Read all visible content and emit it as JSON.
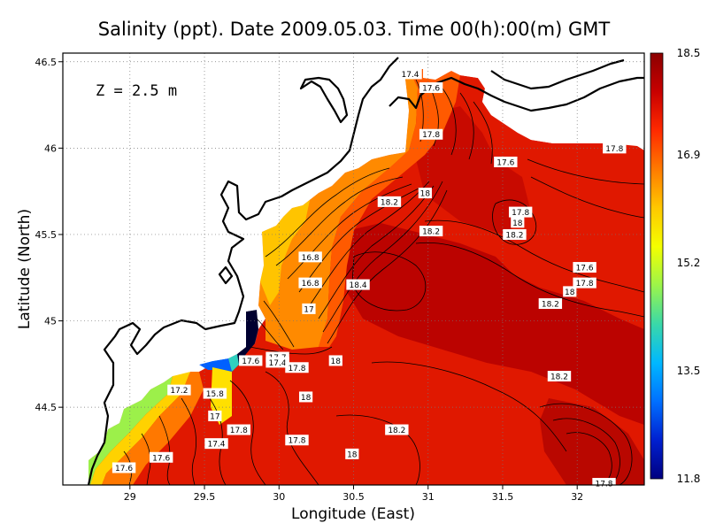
{
  "chart_data": {
    "type": "heatmap",
    "title": "Salinity (ppt). Date 2009.05.03. Time 00(h):00(m) GMT",
    "xlabel": "Longitude (East)",
    "ylabel": "Latitude (North)",
    "depth_label": "Z = 2.5 m",
    "xlim": [
      28.55,
      32.45
    ],
    "ylim": [
      44.05,
      46.55
    ],
    "x_ticks": [
      "29",
      "29.5",
      "30",
      "30.5",
      "31",
      "31.5",
      "32"
    ],
    "y_ticks": [
      "44.5",
      "45",
      "45.5",
      "46",
      "46.5"
    ],
    "grid": true,
    "colorbar": {
      "min": 11.8,
      "max": 18.5,
      "ticks": [
        "18.5",
        "16.9",
        "15.2",
        "13.5",
        "11.8"
      ],
      "colors": [
        "#8b0000",
        "#c80000",
        "#ff2a00",
        "#ff7a00",
        "#ffc800",
        "#f4ff00",
        "#9cf54a",
        "#3ad8a8",
        "#00b8ff",
        "#0070ff",
        "#0020d0",
        "#000080"
      ]
    },
    "contour_labels": [
      {
        "text": "17.4",
        "lon": 30.88,
        "lat": 46.43
      },
      {
        "text": "17.6",
        "lon": 31.02,
        "lat": 46.35
      },
      {
        "text": "17.8",
        "lon": 31.02,
        "lat": 46.08
      },
      {
        "text": "17.8",
        "lon": 32.25,
        "lat": 46.0
      },
      {
        "text": "17.6",
        "lon": 31.52,
        "lat": 45.92
      },
      {
        "text": "18",
        "lon": 30.98,
        "lat": 45.74
      },
      {
        "text": "18.2",
        "lon": 30.74,
        "lat": 45.69
      },
      {
        "text": "17.8",
        "lon": 31.62,
        "lat": 45.63
      },
      {
        "text": "18",
        "lon": 31.6,
        "lat": 45.57
      },
      {
        "text": "18.2",
        "lon": 31.58,
        "lat": 45.5
      },
      {
        "text": "18.2",
        "lon": 31.02,
        "lat": 45.52
      },
      {
        "text": "16.8",
        "lon": 30.21,
        "lat": 45.37
      },
      {
        "text": "17.6",
        "lon": 32.05,
        "lat": 45.31
      },
      {
        "text": "16.8",
        "lon": 30.21,
        "lat": 45.22
      },
      {
        "text": "18.4",
        "lon": 30.53,
        "lat": 45.21
      },
      {
        "text": "17.8",
        "lon": 32.05,
        "lat": 45.22
      },
      {
        "text": "18",
        "lon": 31.95,
        "lat": 45.17
      },
      {
        "text": "17",
        "lon": 30.2,
        "lat": 45.07
      },
      {
        "text": "18.2",
        "lon": 31.82,
        "lat": 45.1
      },
      {
        "text": "17.6",
        "lon": 29.81,
        "lat": 44.77
      },
      {
        "text": "17.7",
        "lon": 29.99,
        "lat": 44.79
      },
      {
        "text": "17.4",
        "lon": 29.99,
        "lat": 44.76
      },
      {
        "text": "18",
        "lon": 30.38,
        "lat": 44.77
      },
      {
        "text": "17.8",
        "lon": 30.12,
        "lat": 44.73
      },
      {
        "text": "18.2",
        "lon": 31.88,
        "lat": 44.68
      },
      {
        "text": "17.2",
        "lon": 29.33,
        "lat": 44.6
      },
      {
        "text": "15.8",
        "lon": 29.57,
        "lat": 44.58
      },
      {
        "text": "18",
        "lon": 30.18,
        "lat": 44.56
      },
      {
        "text": "17",
        "lon": 29.57,
        "lat": 44.45
      },
      {
        "text": "17.8",
        "lon": 29.73,
        "lat": 44.37
      },
      {
        "text": "18.2",
        "lon": 30.79,
        "lat": 44.37
      },
      {
        "text": "17.8",
        "lon": 30.12,
        "lat": 44.31
      },
      {
        "text": "17.4",
        "lon": 29.58,
        "lat": 44.29
      },
      {
        "text": "18",
        "lon": 30.49,
        "lat": 44.23
      },
      {
        "text": "17.6",
        "lon": 29.21,
        "lat": 44.21
      },
      {
        "text": "17.6",
        "lon": 28.96,
        "lat": 44.15
      },
      {
        "text": "17.8",
        "lon": 32.18,
        "lat": 44.06
      }
    ]
  }
}
